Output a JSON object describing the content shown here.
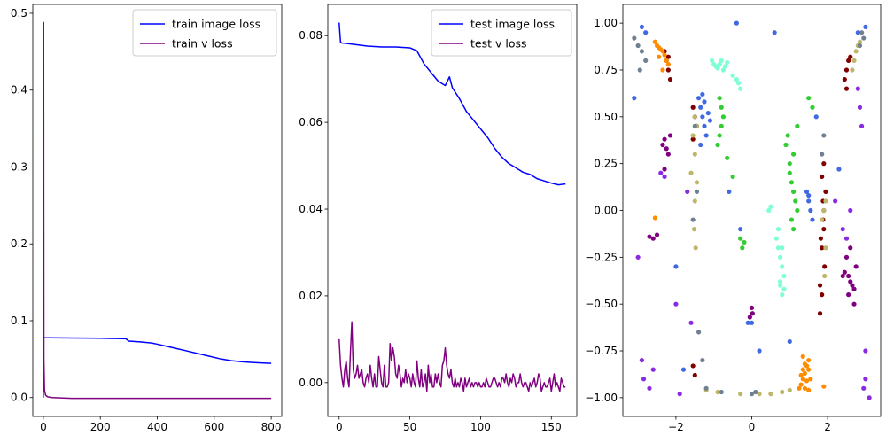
{
  "chart_data": [
    {
      "type": "line",
      "xlim": [
        -37,
        837
      ],
      "ylim": [
        -0.0245,
        0.5115
      ],
      "xticks": [
        0,
        200,
        400,
        600,
        800
      ],
      "xtick_labels": [
        "0",
        "200",
        "400",
        "600",
        "800"
      ],
      "yticks": [
        0.0,
        0.1,
        0.2,
        0.3,
        0.4,
        0.5
      ],
      "ytick_labels": [
        "0.0",
        "0.1",
        "0.2",
        "0.3",
        "0.4",
        "0.5"
      ],
      "legend_position": "top-right",
      "series": [
        {
          "name": "train image loss",
          "color": "#0000ff",
          "x": [
            0,
            1,
            20,
            100,
            200,
            290,
            300,
            340,
            380,
            400,
            430,
            470,
            500,
            540,
            580,
            620,
            660,
            700,
            740,
            780,
            800
          ],
          "y": [
            0.079,
            0.078,
            0.0778,
            0.0775,
            0.0772,
            0.0765,
            0.0735,
            0.0725,
            0.071,
            0.0695,
            0.067,
            0.0635,
            0.061,
            0.0575,
            0.054,
            0.0505,
            0.048,
            0.0465,
            0.0455,
            0.0448,
            0.0445
          ]
        },
        {
          "name": "train v loss",
          "color": "#800080",
          "x": [
            0,
            1,
            2,
            4,
            8,
            15,
            30,
            60,
            100,
            200,
            400,
            600,
            800
          ],
          "y": [
            0.0,
            0.488,
            0.05,
            0.01,
            0.003,
            0.001,
            0.0,
            -0.0005,
            -0.001,
            -0.001,
            -0.001,
            -0.001,
            -0.001
          ]
        }
      ]
    },
    {
      "type": "line",
      "xlim": [
        -8,
        168
      ],
      "ylim": [
        -0.0078,
        0.0872
      ],
      "xticks": [
        0,
        50,
        100,
        150
      ],
      "xtick_labels": [
        "0",
        "50",
        "100",
        "150"
      ],
      "yticks": [
        0.0,
        0.02,
        0.04,
        0.06,
        0.08
      ],
      "ytick_labels": [
        "0.00",
        "0.02",
        "0.04",
        "0.06",
        "0.08"
      ],
      "legend_position": "top-right",
      "series": [
        {
          "name": "test image loss",
          "color": "#0000ff",
          "x": [
            0,
            1,
            2,
            5,
            10,
            20,
            30,
            40,
            50,
            55,
            60,
            65,
            70,
            75,
            78,
            80,
            85,
            90,
            95,
            100,
            105,
            110,
            115,
            120,
            125,
            130,
            135,
            140,
            145,
            150,
            155,
            160
          ],
          "y": [
            0.083,
            0.0785,
            0.0783,
            0.0782,
            0.078,
            0.0776,
            0.0774,
            0.0774,
            0.0772,
            0.0765,
            0.0735,
            0.0715,
            0.0695,
            0.0685,
            0.0705,
            0.068,
            0.0655,
            0.0625,
            0.0605,
            0.0585,
            0.0565,
            0.054,
            0.052,
            0.0505,
            0.0495,
            0.0485,
            0.048,
            0.047,
            0.0465,
            0.046,
            0.0456,
            0.0458
          ]
        },
        {
          "name": "test v loss",
          "color": "#800080",
          "x": [
            0,
            1,
            2,
            3,
            4,
            5,
            6,
            7,
            8,
            9,
            10,
            11,
            12,
            13,
            14,
            15,
            16,
            17,
            18,
            19,
            20,
            21,
            22,
            23,
            24,
            25,
            26,
            27,
            28,
            29,
            30,
            31,
            32,
            33,
            34,
            35,
            36,
            37,
            38,
            39,
            40,
            41,
            42,
            43,
            44,
            45,
            46,
            47,
            48,
            49,
            50,
            51,
            52,
            53,
            54,
            55,
            56,
            57,
            58,
            59,
            60,
            61,
            62,
            63,
            64,
            65,
            66,
            67,
            68,
            69,
            70,
            71,
            72,
            73,
            74,
            75,
            76,
            77,
            78,
            79,
            80,
            81,
            82,
            83,
            84,
            85,
            86,
            87,
            88,
            89,
            90,
            91,
            92,
            93,
            94,
            95,
            96,
            97,
            98,
            99,
            100,
            101,
            102,
            103,
            104,
            105,
            106,
            107,
            108,
            109,
            110,
            111,
            112,
            113,
            114,
            115,
            116,
            117,
            118,
            119,
            120,
            121,
            122,
            123,
            124,
            125,
            126,
            127,
            128,
            129,
            130,
            131,
            132,
            133,
            134,
            135,
            136,
            137,
            138,
            139,
            140,
            141,
            142,
            143,
            144,
            145,
            146,
            147,
            148,
            149,
            150,
            151,
            152,
            153,
            154,
            155,
            156,
            157,
            158,
            159,
            160
          ],
          "y": [
            0.01,
            0.004,
            0.001,
            -0.001,
            0.003,
            0.005,
            0.001,
            -0.001,
            0.007,
            0.014,
            0.003,
            0.001,
            0.002,
            0.004,
            0.001,
            0.002,
            0.003,
            0.0,
            -0.001,
            0.001,
            0.002,
            0.0,
            0.004,
            0.001,
            -0.001,
            0.002,
            -0.001,
            -0.001,
            0.006,
            0.003,
            0.0,
            -0.001,
            0.004,
            -0.001,
            -0.001,
            0.0,
            0.009,
            0.005,
            0.008,
            0.006,
            0.002,
            0.001,
            0.004,
            0.002,
            -0.001,
            0.001,
            0.0,
            0.003,
            0.0,
            0.002,
            0.001,
            -0.001,
            0.002,
            0.0,
            -0.001,
            0.005,
            0.001,
            -0.001,
            0.003,
            -0.001,
            0.0,
            0.002,
            -0.002,
            0.004,
            0.0,
            0.002,
            -0.001,
            -0.001,
            0.002,
            0.0,
            0.002,
            0.0,
            -0.001,
            0.004,
            0.005,
            0.008,
            0.004,
            0.002,
            0.001,
            0.003,
            0.0,
            -0.001,
            0.001,
            -0.001,
            0.0,
            -0.001,
            0.001,
            0.0,
            -0.002,
            0.001,
            -0.001,
            0.0,
            0.001,
            -0.001,
            0.0,
            -0.001,
            0.0,
            0.0,
            -0.001,
            0.0,
            -0.001,
            -0.001,
            0.0,
            -0.001,
            0.001,
            0.0,
            -0.001,
            -0.001,
            0.0,
            0.001,
            0.001,
            0.0,
            -0.001,
            0.0,
            -0.001,
            0.001,
            0.001,
            0.0,
            0.002,
            0.0,
            -0.001,
            0.001,
            0.0,
            0.002,
            0.001,
            -0.001,
            0.0,
            0.0,
            0.002,
            0.0,
            -0.001,
            0.0,
            0.0,
            -0.001,
            -0.002,
            0.0,
            -0.001,
            0.0,
            0.001,
            -0.001,
            0.0,
            0.002,
            0.001,
            -0.002,
            -0.001,
            0.0,
            -0.001,
            -0.001,
            0.0,
            0.001,
            -0.002,
            0.0,
            0.002,
            -0.001,
            0.0,
            -0.001,
            -0.002,
            0.001,
            0.0,
            -0.001,
            -0.001
          ]
        }
      ]
    },
    {
      "type": "scatter",
      "xlim": [
        -3.4,
        3.4
      ],
      "ylim": [
        -1.1,
        1.1
      ],
      "xticks": [
        -2,
        0,
        2
      ],
      "xtick_labels": [
        "−2",
        "0",
        "2"
      ],
      "yticks": [
        -1.0,
        -0.75,
        -0.5,
        -0.25,
        0.0,
        0.25,
        0.5,
        0.75,
        1.0
      ],
      "ytick_labels": [
        "−1.00",
        "−0.75",
        "−0.50",
        "−0.25",
        "0.00",
        "0.25",
        "0.50",
        "0.75",
        "1.00"
      ],
      "series": [
        {
          "color": "#800080",
          "x": [
            -2.35,
            -2.3,
            -2.25,
            -2.2,
            -2.3,
            -2.15,
            -2.6,
            -2.5,
            -2.7,
            2.65,
            2.6,
            2.55,
            2.7,
            2.75,
            2.5,
            2.45,
            2.6,
            2.55,
            2.4,
            2.7,
            0.02,
            -0.05,
            0.0
          ],
          "y": [
            0.35,
            0.38,
            0.33,
            0.3,
            0.22,
            0.4,
            -0.15,
            -0.13,
            -0.14,
            -0.4,
            -0.38,
            -0.35,
            -0.42,
            -0.3,
            -0.25,
            -0.33,
            -0.2,
            -0.45,
            -0.35,
            -0.5,
            -0.55,
            -0.57,
            -0.52
          ]
        },
        {
          "color": "#800000",
          "x": [
            -2.3,
            -2.25,
            -2.2,
            -2.15,
            -2.2,
            -1.55,
            -1.5,
            -1.45,
            -1.55,
            1.9,
            1.85,
            1.95,
            1.9,
            1.88,
            1.82,
            1.85,
            1.92,
            1.8,
            2.5,
            2.55,
            2.6,
            2.45,
            2.5,
            -1.55,
            -1.5,
            1.85,
            1.8,
            1.9,
            1.88
          ],
          "y": [
            0.85,
            0.8,
            0.75,
            0.7,
            0.82,
            0.55,
            0.5,
            0.45,
            0.38,
            0.25,
            0.18,
            0.1,
            0.0,
            -0.05,
            -0.15,
            -0.2,
            -0.3,
            -0.4,
            0.75,
            0.8,
            0.82,
            0.7,
            0.65,
            -0.83,
            -0.88,
            -0.45,
            -0.55,
            -0.1,
            0.05
          ]
        },
        {
          "color": "#ff8c00",
          "x": [
            -2.55,
            -2.5,
            -2.45,
            -2.4,
            -2.35,
            -2.3,
            -2.25,
            -2.2,
            -2.45,
            -2.35,
            1.3,
            1.35,
            1.4,
            1.45,
            1.5,
            1.35,
            1.4,
            1.45,
            1.3,
            1.5,
            1.55,
            1.25,
            1.4,
            1.9,
            1.5,
            -2.55,
            1.35
          ],
          "y": [
            0.9,
            0.88,
            0.87,
            0.86,
            0.85,
            0.83,
            0.8,
            0.78,
            0.82,
            0.75,
            -0.88,
            -0.85,
            -0.82,
            -0.83,
            -0.85,
            -0.9,
            -0.87,
            -0.91,
            -0.93,
            -0.8,
            -0.9,
            -0.95,
            -0.95,
            -0.94,
            -0.96,
            -0.04,
            -0.78
          ]
        },
        {
          "color": "#bdb76b",
          "x": [
            -1.5,
            -1.45,
            -1.55,
            -1.5,
            -1.6,
            -1.45,
            -1.5,
            -1.52,
            -1.48,
            1.95,
            1.9,
            1.85,
            1.95,
            1.92,
            2.8,
            2.75,
            2.7,
            2.65,
            2.85,
            0.2,
            0.5,
            0.8,
            1.0,
            -0.3,
            -0.9,
            -1.2
          ],
          "y": [
            0.5,
            0.45,
            0.4,
            0.3,
            0.2,
            0.15,
            0.05,
            -0.1,
            -0.2,
            0.05,
            0.0,
            -0.05,
            -0.2,
            -0.35,
            0.88,
            0.85,
            0.8,
            0.75,
            0.9,
            -0.98,
            -0.98,
            -0.97,
            -0.96,
            -0.98,
            -0.97,
            -0.96
          ]
        },
        {
          "color": "#708090",
          "x": [
            -3.1,
            -3.0,
            -2.9,
            -2.8,
            -2.95,
            -1.5,
            -1.45,
            -1.55,
            1.85,
            1.9,
            2.9,
            2.85,
            2.95,
            -1.4,
            -1.3,
            -1.2,
            0.0,
            0.1,
            -0.8
          ],
          "y": [
            0.92,
            0.88,
            0.85,
            0.8,
            0.75,
            0.45,
            0.1,
            -0.05,
            0.3,
            0.4,
            0.95,
            0.88,
            0.92,
            -0.65,
            -0.8,
            -0.95,
            -0.98,
            -0.97,
            -0.97
          ]
        },
        {
          "color": "#4169e1",
          "x": [
            -1.4,
            -1.35,
            -1.3,
            -1.25,
            -1.2,
            -1.35,
            -1.3,
            -1.25,
            -1.15,
            -1.1,
            1.5,
            1.55,
            1.6,
            1.45,
            1.5,
            -2.9,
            -2.8,
            2.8,
            3.0,
            -3.1,
            -0.4,
            0.6,
            -0.1,
            1.0,
            -2.0,
            2.3,
            -0.6,
            0.2,
            -1.8,
            1.7,
            -0.3,
            0.0
          ],
          "y": [
            0.6,
            0.55,
            0.5,
            0.45,
            0.4,
            0.35,
            0.62,
            0.58,
            0.52,
            0.48,
            0.05,
            0.0,
            -0.05,
            0.1,
            0.08,
            0.98,
            0.95,
            0.95,
            0.98,
            0.6,
            1.0,
            0.95,
            -0.6,
            -0.7,
            -0.3,
            0.22,
            0.1,
            -0.75,
            -0.85,
            0.5,
            -0.1,
            -0.6
          ]
        },
        {
          "color": "#32cd32",
          "x": [
            -0.85,
            -0.8,
            -0.75,
            -0.8,
            -0.85,
            -0.9,
            1.0,
            1.05,
            1.1,
            1.15,
            1.0,
            1.1,
            0.95,
            1.2,
            -0.3,
            -0.25,
            -0.2,
            1.05,
            1.1,
            1.2,
            -0.65,
            -0.5,
            1.5,
            1.6,
            0.9
          ],
          "y": [
            0.6,
            0.55,
            0.5,
            0.45,
            0.4,
            0.35,
            0.2,
            0.15,
            0.1,
            0.05,
            0.25,
            0.3,
            0.4,
            0.45,
            -0.15,
            -0.2,
            -0.17,
            -0.05,
            -0.1,
            0.0,
            0.28,
            0.18,
            0.6,
            0.55,
            0.35
          ]
        },
        {
          "color": "#7fffd4",
          "x": [
            -1.05,
            -1.0,
            -0.95,
            -0.9,
            -0.85,
            -0.8,
            -0.75,
            -0.7,
            -0.65,
            -0.5,
            -0.4,
            -0.35,
            -0.3,
            0.65,
            0.7,
            0.75,
            0.8,
            0.85,
            0.75,
            0.8,
            0.7,
            0.85,
            0.8,
            0.75,
            0.45,
            0.5
          ],
          "y": [
            0.8,
            0.78,
            0.77,
            0.76,
            0.78,
            0.8,
            0.75,
            0.77,
            0.79,
            0.72,
            0.7,
            0.68,
            0.65,
            -0.15,
            -0.2,
            -0.25,
            -0.3,
            -0.35,
            -0.4,
            -0.2,
            -0.1,
            -0.42,
            -0.45,
            -0.38,
            0.0,
            0.02
          ]
        },
        {
          "color": "#8a2be2",
          "x": [
            -2.9,
            -2.85,
            -2.7,
            -2.6,
            2.8,
            2.85,
            2.9,
            2.6,
            3.0,
            3.1,
            -2.4,
            -2.3,
            -1.7,
            2.4,
            2.5,
            -3.0,
            -2.0,
            2.2,
            3.0,
            -1.9,
            2.95,
            -1.6
          ],
          "y": [
            -0.8,
            -0.9,
            -0.95,
            -0.85,
            0.65,
            0.55,
            0.45,
            0.0,
            -0.9,
            -1.0,
            0.2,
            0.18,
            0.1,
            -0.1,
            -0.15,
            -0.25,
            -0.5,
            0.05,
            -0.75,
            -0.98,
            -0.95,
            -0.6
          ]
        }
      ]
    }
  ]
}
